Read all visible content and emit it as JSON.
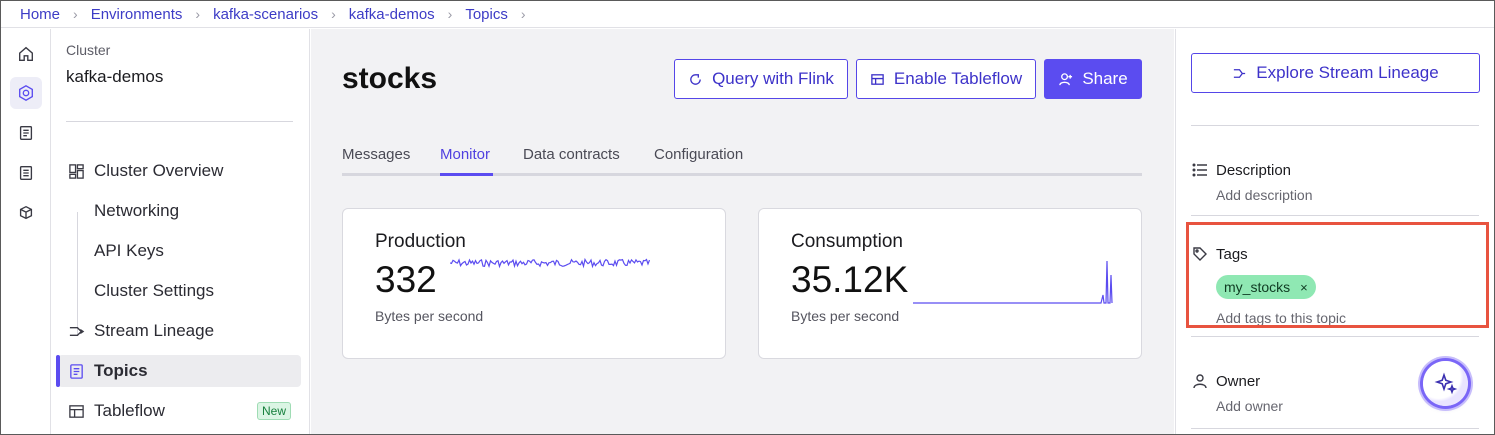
{
  "breadcrumb": [
    {
      "label": "Home"
    },
    {
      "label": "Environments"
    },
    {
      "label": "kafka-scenarios"
    },
    {
      "label": "kafka-demos"
    },
    {
      "label": "Topics"
    }
  ],
  "rail": {
    "icons": [
      "home-icon",
      "environment-icon",
      "document-icon",
      "checklist-icon",
      "data-cube-icon"
    ],
    "active_index": 1
  },
  "nav": {
    "caption": "Cluster",
    "cluster_name": "kafka-demos",
    "items": [
      {
        "label": "Cluster Overview",
        "icon": "dashboard-icon"
      },
      {
        "label": "Networking"
      },
      {
        "label": "API Keys"
      },
      {
        "label": "Cluster Settings"
      },
      {
        "label": "Stream Lineage",
        "icon": "lineage-icon"
      },
      {
        "label": "Topics",
        "icon": "topic-icon",
        "active": true
      },
      {
        "label": "Tableflow",
        "icon": "tableflow-icon",
        "badge": "New"
      }
    ]
  },
  "main": {
    "title": "stocks",
    "buttons": {
      "flink": "Query with Flink",
      "tableflow": "Enable Tableflow",
      "share": "Share"
    },
    "tabs": [
      {
        "label": "Messages"
      },
      {
        "label": "Monitor",
        "active": true
      },
      {
        "label": "Data contracts"
      },
      {
        "label": "Configuration"
      }
    ],
    "production": {
      "title": "Production",
      "value": "332",
      "unit": "Bytes per second"
    },
    "consumption": {
      "title": "Consumption",
      "value": "35.12K",
      "unit": "Bytes per second"
    }
  },
  "side": {
    "lineage_button": "Explore Stream Lineage",
    "description": {
      "heading": "Description",
      "hint": "Add description"
    },
    "tags": {
      "heading": "Tags",
      "chip": "my_stocks",
      "chip_remove": "×",
      "hint": "Add tags to this topic"
    },
    "owner": {
      "heading": "Owner",
      "hint": "Add owner"
    }
  },
  "colors": {
    "accent": "#5b4cf0",
    "highlight": "#e8533f",
    "tag": "#8fe8b3"
  }
}
